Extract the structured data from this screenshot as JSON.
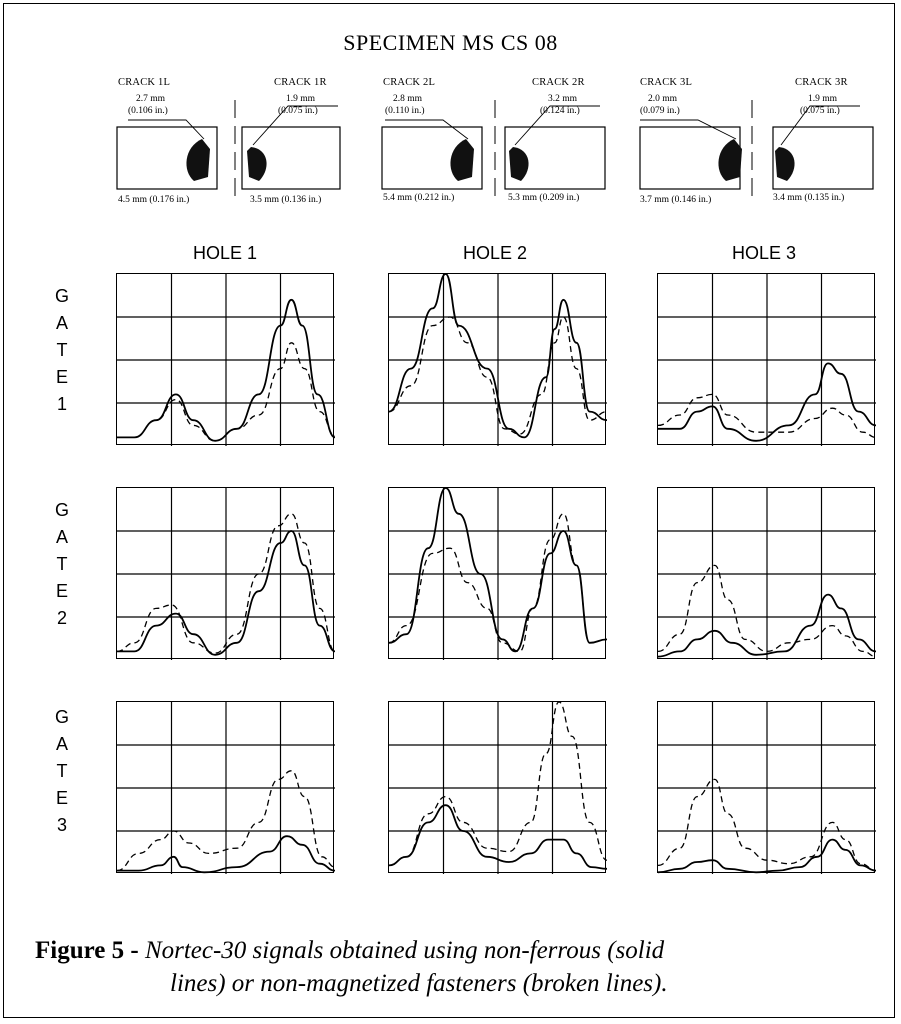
{
  "title": "SPECIMEN  MS CS 08",
  "cracks": [
    {
      "label": "CRACK 1L",
      "mm": "2.7 mm",
      "in": "(0.106 in.)",
      "bottom": "4.5 mm  (0.176 in.)"
    },
    {
      "label": "CRACK 1R",
      "mm": "1.9 mm",
      "in": "(0.075 in.)",
      "bottom": "3.5 mm  (0.136 in.)"
    },
    {
      "label": "CRACK 2L",
      "mm": "2.8 mm",
      "in": "(0.110 in.)",
      "bottom": "5.4 mm  (0.212 in.)"
    },
    {
      "label": "CRACK 2R",
      "mm": "3.2 mm",
      "in": "(0.124 in.)",
      "bottom": "5.3 mm  (0.209 in.)"
    },
    {
      "label": "CRACK 3L",
      "mm": "2.0 mm",
      "in": "(0.079 in.)",
      "bottom": "3.7 mm  (0.146 in.)"
    },
    {
      "label": "CRACK 3R",
      "mm": "1.9 mm",
      "in": "(0.075 in.)",
      "bottom": "3.4 mm  (0.135 in.)"
    }
  ],
  "holes": [
    "HOLE 1",
    "HOLE 2",
    "HOLE 3"
  ],
  "gates": [
    {
      "letters": [
        "G",
        "A",
        "T",
        "E"
      ],
      "number": "1"
    },
    {
      "letters": [
        "G",
        "A",
        "T",
        "E"
      ],
      "number": "2"
    },
    {
      "letters": [
        "G",
        "A",
        "T",
        "E"
      ],
      "number": "3"
    }
  ],
  "caption": {
    "bold": "Figure 5 -",
    "line1": " Nortec-30 signals obtained using non-ferrous (solid",
    "line2": "lines) or non-magnetized fasteners (broken lines)."
  },
  "chart_data": {
    "type": "line",
    "description_grid": "3 gates x 3 holes, each a 5x4 grid, signal amplitude vs position",
    "series_styles": {
      "solid": "non-ferrous fasteners",
      "dashed": "non-magnetized fasteners"
    },
    "panels": [
      {
        "gate": "1",
        "hole": "1",
        "solid": [
          [
            0,
            0.05
          ],
          [
            0.08,
            0.05
          ],
          [
            0.18,
            0.15
          ],
          [
            0.27,
            0.3
          ],
          [
            0.35,
            0.15
          ],
          [
            0.45,
            0.03
          ],
          [
            0.55,
            0.1
          ],
          [
            0.65,
            0.3
          ],
          [
            0.75,
            0.7
          ],
          [
            0.8,
            0.85
          ],
          [
            0.85,
            0.7
          ],
          [
            0.92,
            0.3
          ],
          [
            1,
            0.05
          ]
        ],
        "dashed": [
          [
            0,
            0.05
          ],
          [
            0.08,
            0.05
          ],
          [
            0.18,
            0.15
          ],
          [
            0.27,
            0.27
          ],
          [
            0.35,
            0.12
          ],
          [
            0.45,
            0.03
          ],
          [
            0.55,
            0.1
          ],
          [
            0.65,
            0.18
          ],
          [
            0.75,
            0.45
          ],
          [
            0.8,
            0.6
          ],
          [
            0.86,
            0.45
          ],
          [
            0.93,
            0.2
          ],
          [
            1,
            0.06
          ]
        ]
      },
      {
        "gate": "1",
        "hole": "2",
        "solid": [
          [
            0,
            0.2
          ],
          [
            0.1,
            0.45
          ],
          [
            0.2,
            0.8
          ],
          [
            0.26,
            1.0
          ],
          [
            0.32,
            0.7
          ],
          [
            0.45,
            0.45
          ],
          [
            0.55,
            0.1
          ],
          [
            0.62,
            0.05
          ],
          [
            0.72,
            0.4
          ],
          [
            0.76,
            0.68
          ],
          [
            0.8,
            0.85
          ],
          [
            0.86,
            0.6
          ],
          [
            0.92,
            0.2
          ],
          [
            1,
            0.15
          ]
        ],
        "dashed": [
          [
            0,
            0.2
          ],
          [
            0.1,
            0.35
          ],
          [
            0.2,
            0.7
          ],
          [
            0.28,
            0.75
          ],
          [
            0.36,
            0.6
          ],
          [
            0.45,
            0.4
          ],
          [
            0.53,
            0.1
          ],
          [
            0.6,
            0.07
          ],
          [
            0.7,
            0.3
          ],
          [
            0.76,
            0.6
          ],
          [
            0.8,
            0.75
          ],
          [
            0.86,
            0.45
          ],
          [
            0.92,
            0.15
          ],
          [
            1,
            0.2
          ]
        ]
      },
      {
        "gate": "1",
        "hole": "3",
        "solid": [
          [
            0,
            0.1
          ],
          [
            0.1,
            0.1
          ],
          [
            0.18,
            0.2
          ],
          [
            0.25,
            0.23
          ],
          [
            0.32,
            0.1
          ],
          [
            0.45,
            0.03
          ],
          [
            0.6,
            0.12
          ],
          [
            0.72,
            0.3
          ],
          [
            0.78,
            0.48
          ],
          [
            0.84,
            0.42
          ],
          [
            0.92,
            0.2
          ],
          [
            1,
            0.12
          ]
        ],
        "dashed": [
          [
            0,
            0.12
          ],
          [
            0.1,
            0.18
          ],
          [
            0.18,
            0.28
          ],
          [
            0.25,
            0.3
          ],
          [
            0.32,
            0.18
          ],
          [
            0.45,
            0.08
          ],
          [
            0.6,
            0.08
          ],
          [
            0.72,
            0.16
          ],
          [
            0.8,
            0.22
          ],
          [
            0.86,
            0.18
          ],
          [
            0.94,
            0.08
          ],
          [
            1,
            0.05
          ]
        ]
      },
      {
        "gate": "2",
        "hole": "1",
        "solid": [
          [
            0,
            0.05
          ],
          [
            0.08,
            0.05
          ],
          [
            0.18,
            0.2
          ],
          [
            0.27,
            0.27
          ],
          [
            0.35,
            0.15
          ],
          [
            0.45,
            0.03
          ],
          [
            0.55,
            0.1
          ],
          [
            0.65,
            0.4
          ],
          [
            0.75,
            0.68
          ],
          [
            0.8,
            0.75
          ],
          [
            0.86,
            0.55
          ],
          [
            0.93,
            0.2
          ],
          [
            1,
            0.05
          ]
        ],
        "dashed": [
          [
            0,
            0.05
          ],
          [
            0.08,
            0.1
          ],
          [
            0.18,
            0.3
          ],
          [
            0.25,
            0.32
          ],
          [
            0.35,
            0.1
          ],
          [
            0.45,
            0.04
          ],
          [
            0.55,
            0.15
          ],
          [
            0.65,
            0.5
          ],
          [
            0.74,
            0.78
          ],
          [
            0.8,
            0.85
          ],
          [
            0.86,
            0.68
          ],
          [
            0.93,
            0.3
          ],
          [
            1,
            0.05
          ]
        ]
      },
      {
        "gate": "2",
        "hole": "2",
        "solid": [
          [
            0,
            0.1
          ],
          [
            0.08,
            0.15
          ],
          [
            0.18,
            0.65
          ],
          [
            0.26,
            1.0
          ],
          [
            0.32,
            0.85
          ],
          [
            0.42,
            0.5
          ],
          [
            0.52,
            0.12
          ],
          [
            0.58,
            0.05
          ],
          [
            0.66,
            0.3
          ],
          [
            0.74,
            0.62
          ],
          [
            0.8,
            0.75
          ],
          [
            0.86,
            0.55
          ],
          [
            0.92,
            0.1
          ],
          [
            1,
            0.12
          ]
        ],
        "dashed": [
          [
            0,
            0.1
          ],
          [
            0.08,
            0.2
          ],
          [
            0.2,
            0.62
          ],
          [
            0.28,
            0.65
          ],
          [
            0.36,
            0.45
          ],
          [
            0.45,
            0.3
          ],
          [
            0.52,
            0.1
          ],
          [
            0.6,
            0.05
          ],
          [
            0.66,
            0.3
          ],
          [
            0.74,
            0.7
          ],
          [
            0.8,
            0.85
          ],
          [
            0.86,
            0.55
          ],
          [
            0.92,
            0.1
          ],
          [
            1,
            0.12
          ]
        ]
      },
      {
        "gate": "2",
        "hole": "3",
        "solid": [
          [
            0,
            0.02
          ],
          [
            0.1,
            0.05
          ],
          [
            0.18,
            0.12
          ],
          [
            0.26,
            0.17
          ],
          [
            0.34,
            0.1
          ],
          [
            0.45,
            0.03
          ],
          [
            0.58,
            0.05
          ],
          [
            0.7,
            0.2
          ],
          [
            0.78,
            0.38
          ],
          [
            0.84,
            0.3
          ],
          [
            0.92,
            0.12
          ],
          [
            1,
            0.05
          ]
        ],
        "dashed": [
          [
            0,
            0.05
          ],
          [
            0.1,
            0.15
          ],
          [
            0.18,
            0.45
          ],
          [
            0.26,
            0.55
          ],
          [
            0.32,
            0.35
          ],
          [
            0.4,
            0.12
          ],
          [
            0.5,
            0.05
          ],
          [
            0.6,
            0.1
          ],
          [
            0.7,
            0.12
          ],
          [
            0.8,
            0.2
          ],
          [
            0.86,
            0.14
          ],
          [
            0.94,
            0.05
          ],
          [
            1,
            0.02
          ]
        ]
      },
      {
        "gate": "3",
        "hole": "1",
        "solid": [
          [
            0,
            0.02
          ],
          [
            0.1,
            0.02
          ],
          [
            0.2,
            0.05
          ],
          [
            0.26,
            0.1
          ],
          [
            0.3,
            0.04
          ],
          [
            0.4,
            0.01
          ],
          [
            0.55,
            0.04
          ],
          [
            0.7,
            0.13
          ],
          [
            0.78,
            0.22
          ],
          [
            0.85,
            0.17
          ],
          [
            0.93,
            0.06
          ],
          [
            1,
            0.02
          ]
        ],
        "dashed": [
          [
            0,
            0.02
          ],
          [
            0.1,
            0.12
          ],
          [
            0.2,
            0.2
          ],
          [
            0.26,
            0.25
          ],
          [
            0.33,
            0.18
          ],
          [
            0.42,
            0.12
          ],
          [
            0.55,
            0.15
          ],
          [
            0.65,
            0.3
          ],
          [
            0.74,
            0.55
          ],
          [
            0.8,
            0.6
          ],
          [
            0.86,
            0.45
          ],
          [
            0.94,
            0.1
          ],
          [
            1,
            0.04
          ]
        ]
      },
      {
        "gate": "3",
        "hole": "2",
        "solid": [
          [
            0,
            0.05
          ],
          [
            0.08,
            0.1
          ],
          [
            0.18,
            0.3
          ],
          [
            0.26,
            0.4
          ],
          [
            0.34,
            0.25
          ],
          [
            0.45,
            0.1
          ],
          [
            0.55,
            0.07
          ],
          [
            0.65,
            0.12
          ],
          [
            0.73,
            0.2
          ],
          [
            0.8,
            0.2
          ],
          [
            0.86,
            0.12
          ],
          [
            0.93,
            0.04
          ],
          [
            1,
            0.03
          ]
        ],
        "dashed": [
          [
            0,
            0.05
          ],
          [
            0.08,
            0.1
          ],
          [
            0.18,
            0.35
          ],
          [
            0.26,
            0.45
          ],
          [
            0.34,
            0.3
          ],
          [
            0.45,
            0.15
          ],
          [
            0.55,
            0.13
          ],
          [
            0.65,
            0.3
          ],
          [
            0.72,
            0.7
          ],
          [
            0.78,
            1.0
          ],
          [
            0.84,
            0.8
          ],
          [
            0.92,
            0.3
          ],
          [
            1,
            0.08
          ]
        ]
      },
      {
        "gate": "3",
        "hole": "3",
        "solid": [
          [
            0,
            0.01
          ],
          [
            0.1,
            0.03
          ],
          [
            0.18,
            0.07
          ],
          [
            0.25,
            0.08
          ],
          [
            0.32,
            0.03
          ],
          [
            0.45,
            0.01
          ],
          [
            0.55,
            0.02
          ],
          [
            0.65,
            0.04
          ],
          [
            0.73,
            0.1
          ],
          [
            0.8,
            0.2
          ],
          [
            0.86,
            0.14
          ],
          [
            0.93,
            0.05
          ],
          [
            1,
            0.02
          ]
        ],
        "dashed": [
          [
            0,
            0.05
          ],
          [
            0.1,
            0.15
          ],
          [
            0.18,
            0.45
          ],
          [
            0.26,
            0.55
          ],
          [
            0.32,
            0.35
          ],
          [
            0.4,
            0.15
          ],
          [
            0.5,
            0.08
          ],
          [
            0.6,
            0.06
          ],
          [
            0.7,
            0.1
          ],
          [
            0.8,
            0.3
          ],
          [
            0.86,
            0.2
          ],
          [
            0.93,
            0.06
          ],
          [
            1,
            0.02
          ]
        ]
      }
    ]
  }
}
